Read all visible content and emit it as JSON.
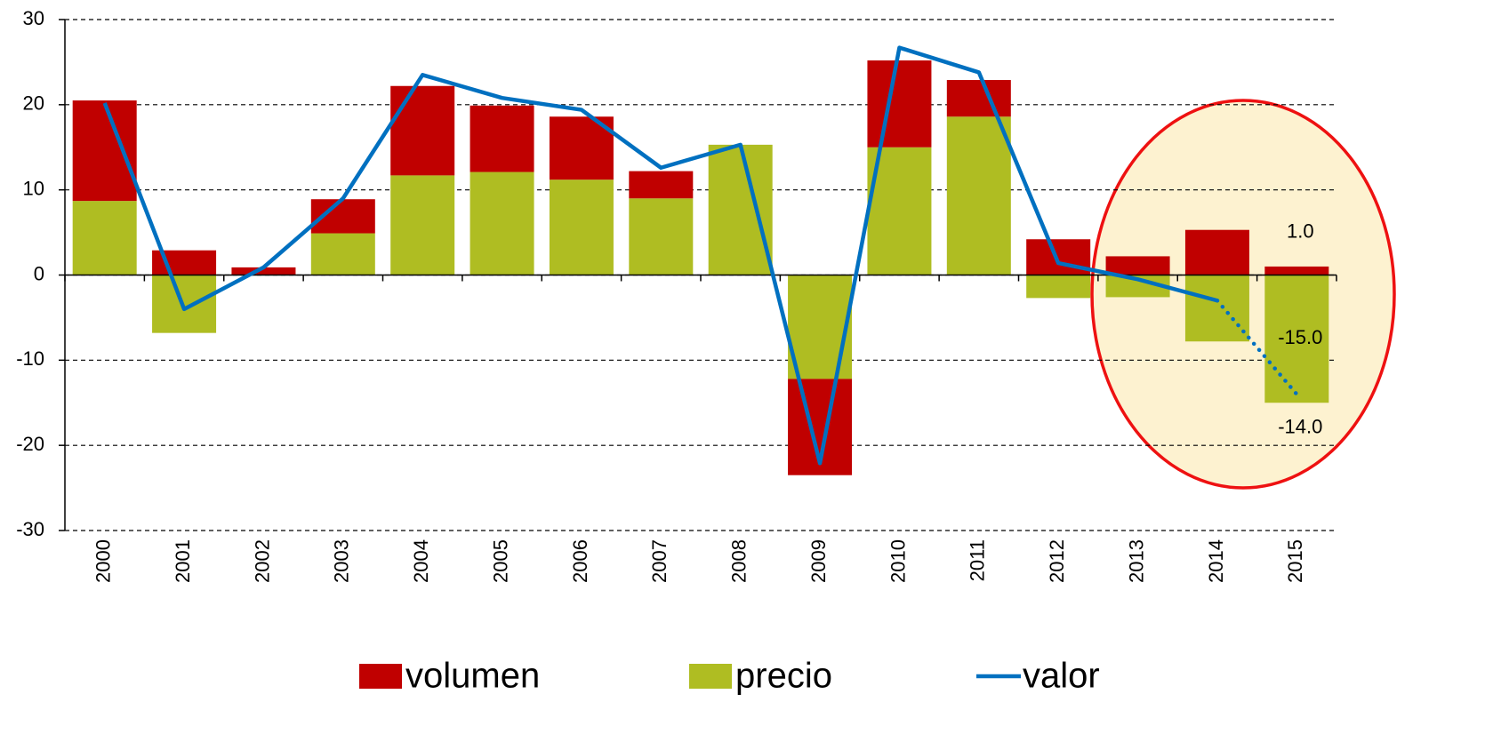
{
  "chart_data": {
    "type": "bar",
    "categories": [
      "2000",
      "2001",
      "2002",
      "2003",
      "2004",
      "2005",
      "2006",
      "2007",
      "2008",
      "2009",
      "2010",
      "2011",
      "2012",
      "2013",
      "2014",
      "2015"
    ],
    "series": [
      {
        "name": "volumen",
        "type": "bar",
        "color": "#c00000",
        "values": [
          11.8,
          2.9,
          0.9,
          4.0,
          10.5,
          7.8,
          7.4,
          3.2,
          0,
          -11.3,
          10.2,
          4.3,
          4.2,
          2.2,
          5.3,
          1.0
        ],
        "value_labels": [
          null,
          null,
          null,
          null,
          null,
          null,
          null,
          null,
          null,
          null,
          null,
          null,
          null,
          null,
          null,
          "1.0"
        ]
      },
      {
        "name": "precio",
        "type": "bar",
        "color": "#afbd22",
        "values": [
          8.7,
          -6.8,
          0,
          4.9,
          11.7,
          12.1,
          11.2,
          9.0,
          15.3,
          -12.2,
          15.0,
          18.6,
          -2.7,
          -2.6,
          -7.8,
          -15.0
        ],
        "value_labels": [
          null,
          null,
          null,
          null,
          null,
          null,
          null,
          null,
          null,
          null,
          null,
          null,
          null,
          null,
          null,
          "-15.0"
        ]
      },
      {
        "name": "valor",
        "type": "line",
        "color": "#0070c0",
        "dotted_after": "2014",
        "values": [
          20.2,
          -4.0,
          0.9,
          9.0,
          23.5,
          20.8,
          19.4,
          12.6,
          15.3,
          -22.1,
          26.7,
          23.8,
          1.4,
          -0.5,
          -3.0,
          -14.0
        ],
        "value_labels": [
          null,
          null,
          null,
          null,
          null,
          null,
          null,
          null,
          null,
          null,
          null,
          null,
          null,
          null,
          null,
          "-14.0"
        ]
      }
    ],
    "ylim": [
      -30,
      30
    ],
    "yticks": [
      -30,
      -20,
      -10,
      0,
      10,
      20,
      30
    ],
    "grid": true,
    "stacked": true
  }
}
